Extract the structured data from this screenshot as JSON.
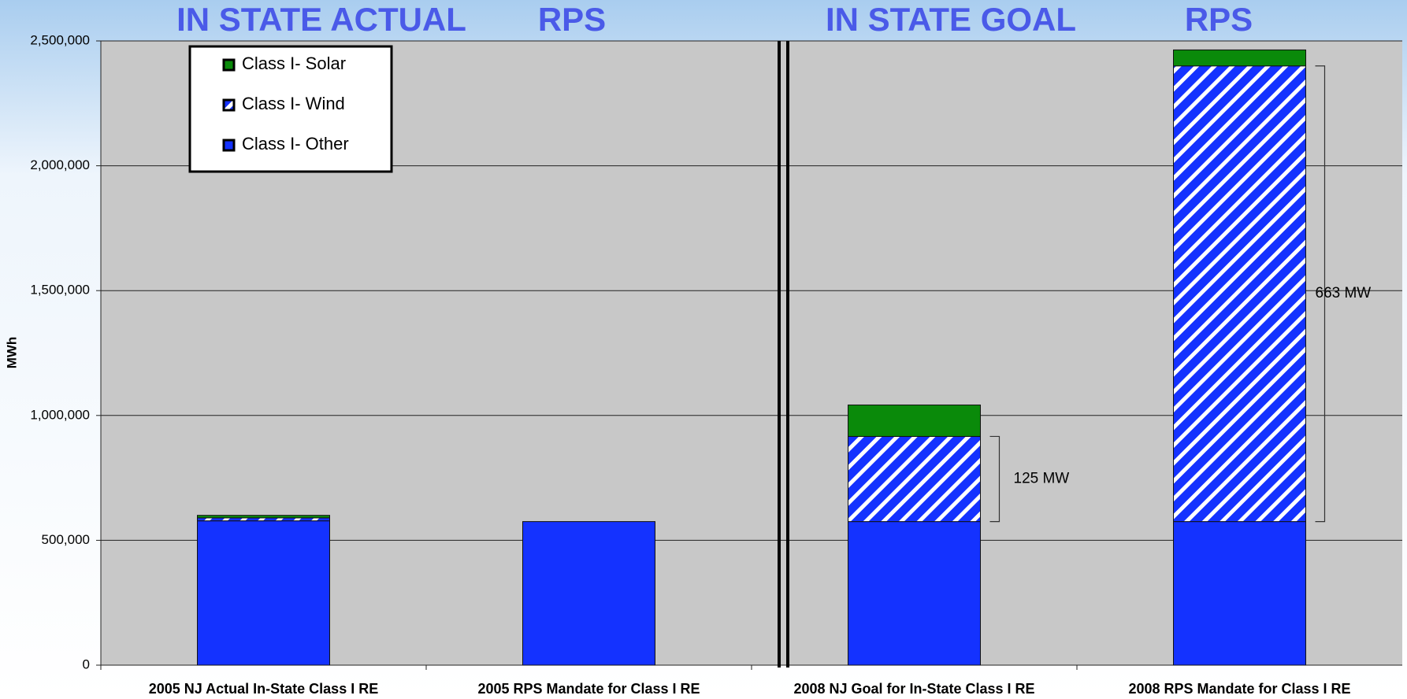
{
  "chart_data": {
    "type": "stacked_bar",
    "group_titles": [
      "IN STATE ACTUAL",
      "RPS",
      "IN STATE GOAL",
      "RPS"
    ],
    "y_label": "MWh",
    "categories": [
      "2005 NJ Actual In-State Class I RE",
      "2005 RPS Mandate for Class I RE",
      "2008 NJ Goal for In-State Class I RE",
      "2008 RPS Mandate for Class I RE"
    ],
    "series": [
      {
        "name": "Class I- Other",
        "color": "#1432ff",
        "values": [
          578000,
          575000,
          575000,
          575000
        ]
      },
      {
        "name": "Class I- Wind",
        "color": "#1432ff",
        "pattern": "diagonal-stripes",
        "values": [
          12000,
          0,
          341000,
          1825000
        ]
      },
      {
        "name": "Class I- Solar",
        "color": "#0a8a0a",
        "values": [
          10000,
          0,
          126000,
          64000
        ]
      }
    ],
    "annotations": [
      "125 MW",
      "663 MW"
    ],
    "ylim": [
      0,
      2500000
    ],
    "yticks": [
      {
        "value": 0,
        "label": "0"
      },
      {
        "value": 500000,
        "label": "500,000"
      },
      {
        "value": 1000000,
        "label": "1,000,000"
      },
      {
        "value": 1500000,
        "label": "1,500,000"
      },
      {
        "value": 2000000,
        "label": "2,000,000"
      },
      {
        "value": 2500000,
        "label": "2,500,000"
      }
    ],
    "grid": true
  }
}
